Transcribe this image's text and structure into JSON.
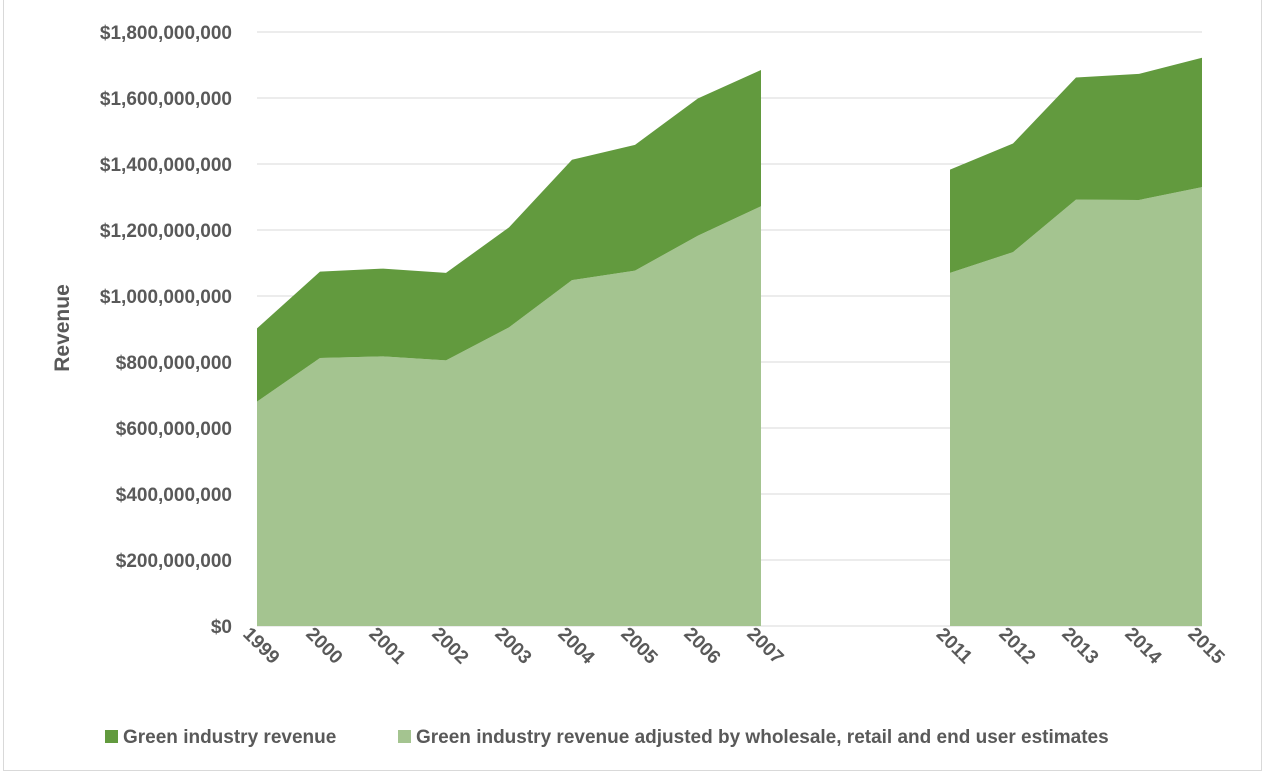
{
  "chart_data": {
    "type": "area",
    "stacked": true,
    "ylabel": "Revenue",
    "xlabel": "",
    "ylim": [
      0,
      1800000000
    ],
    "yticks": [
      0,
      200000000,
      400000000,
      600000000,
      800000000,
      1000000000,
      1200000000,
      1400000000,
      1600000000,
      1800000000
    ],
    "ytick_labels": [
      "$0",
      "$200,000,000",
      "$400,000,000",
      "$600,000,000",
      "$800,000,000",
      "$1,000,000,000",
      "$1,200,000,000",
      "$1,400,000,000",
      "$1,600,000,000",
      "$1,800,000,000"
    ],
    "categories": [
      "1999",
      "2000",
      "2001",
      "2002",
      "2003",
      "2004",
      "2005",
      "2006",
      "2007",
      "",
      "",
      "2011",
      "2012",
      "2013",
      "2014",
      "2015"
    ],
    "grid": true,
    "legend_position": "bottom",
    "series": [
      {
        "name": "Green industry revenue adjusted by wholesale, retail and end user estimates",
        "color": "#a4c490",
        "values": [
          680000000,
          812000000,
          817000000,
          805000000,
          905000000,
          1048000000,
          1077000000,
          1183000000,
          1272000000,
          null,
          null,
          1070000000,
          1133000000,
          1292000000,
          1291000000,
          1330000000
        ]
      },
      {
        "name": "Green industry revenue",
        "color": "#629a3e",
        "values": [
          222000000,
          262000000,
          266000000,
          265000000,
          303000000,
          365000000,
          381000000,
          416000000,
          413000000,
          null,
          null,
          313000000,
          329000000,
          370000000,
          382000000,
          392000000
        ]
      }
    ],
    "legend": [
      {
        "label": "Green industry revenue",
        "color": "#629a3e"
      },
      {
        "label": "Green industry revenue adjusted by wholesale, retail and end user estimates",
        "color": "#a4c490"
      }
    ]
  }
}
